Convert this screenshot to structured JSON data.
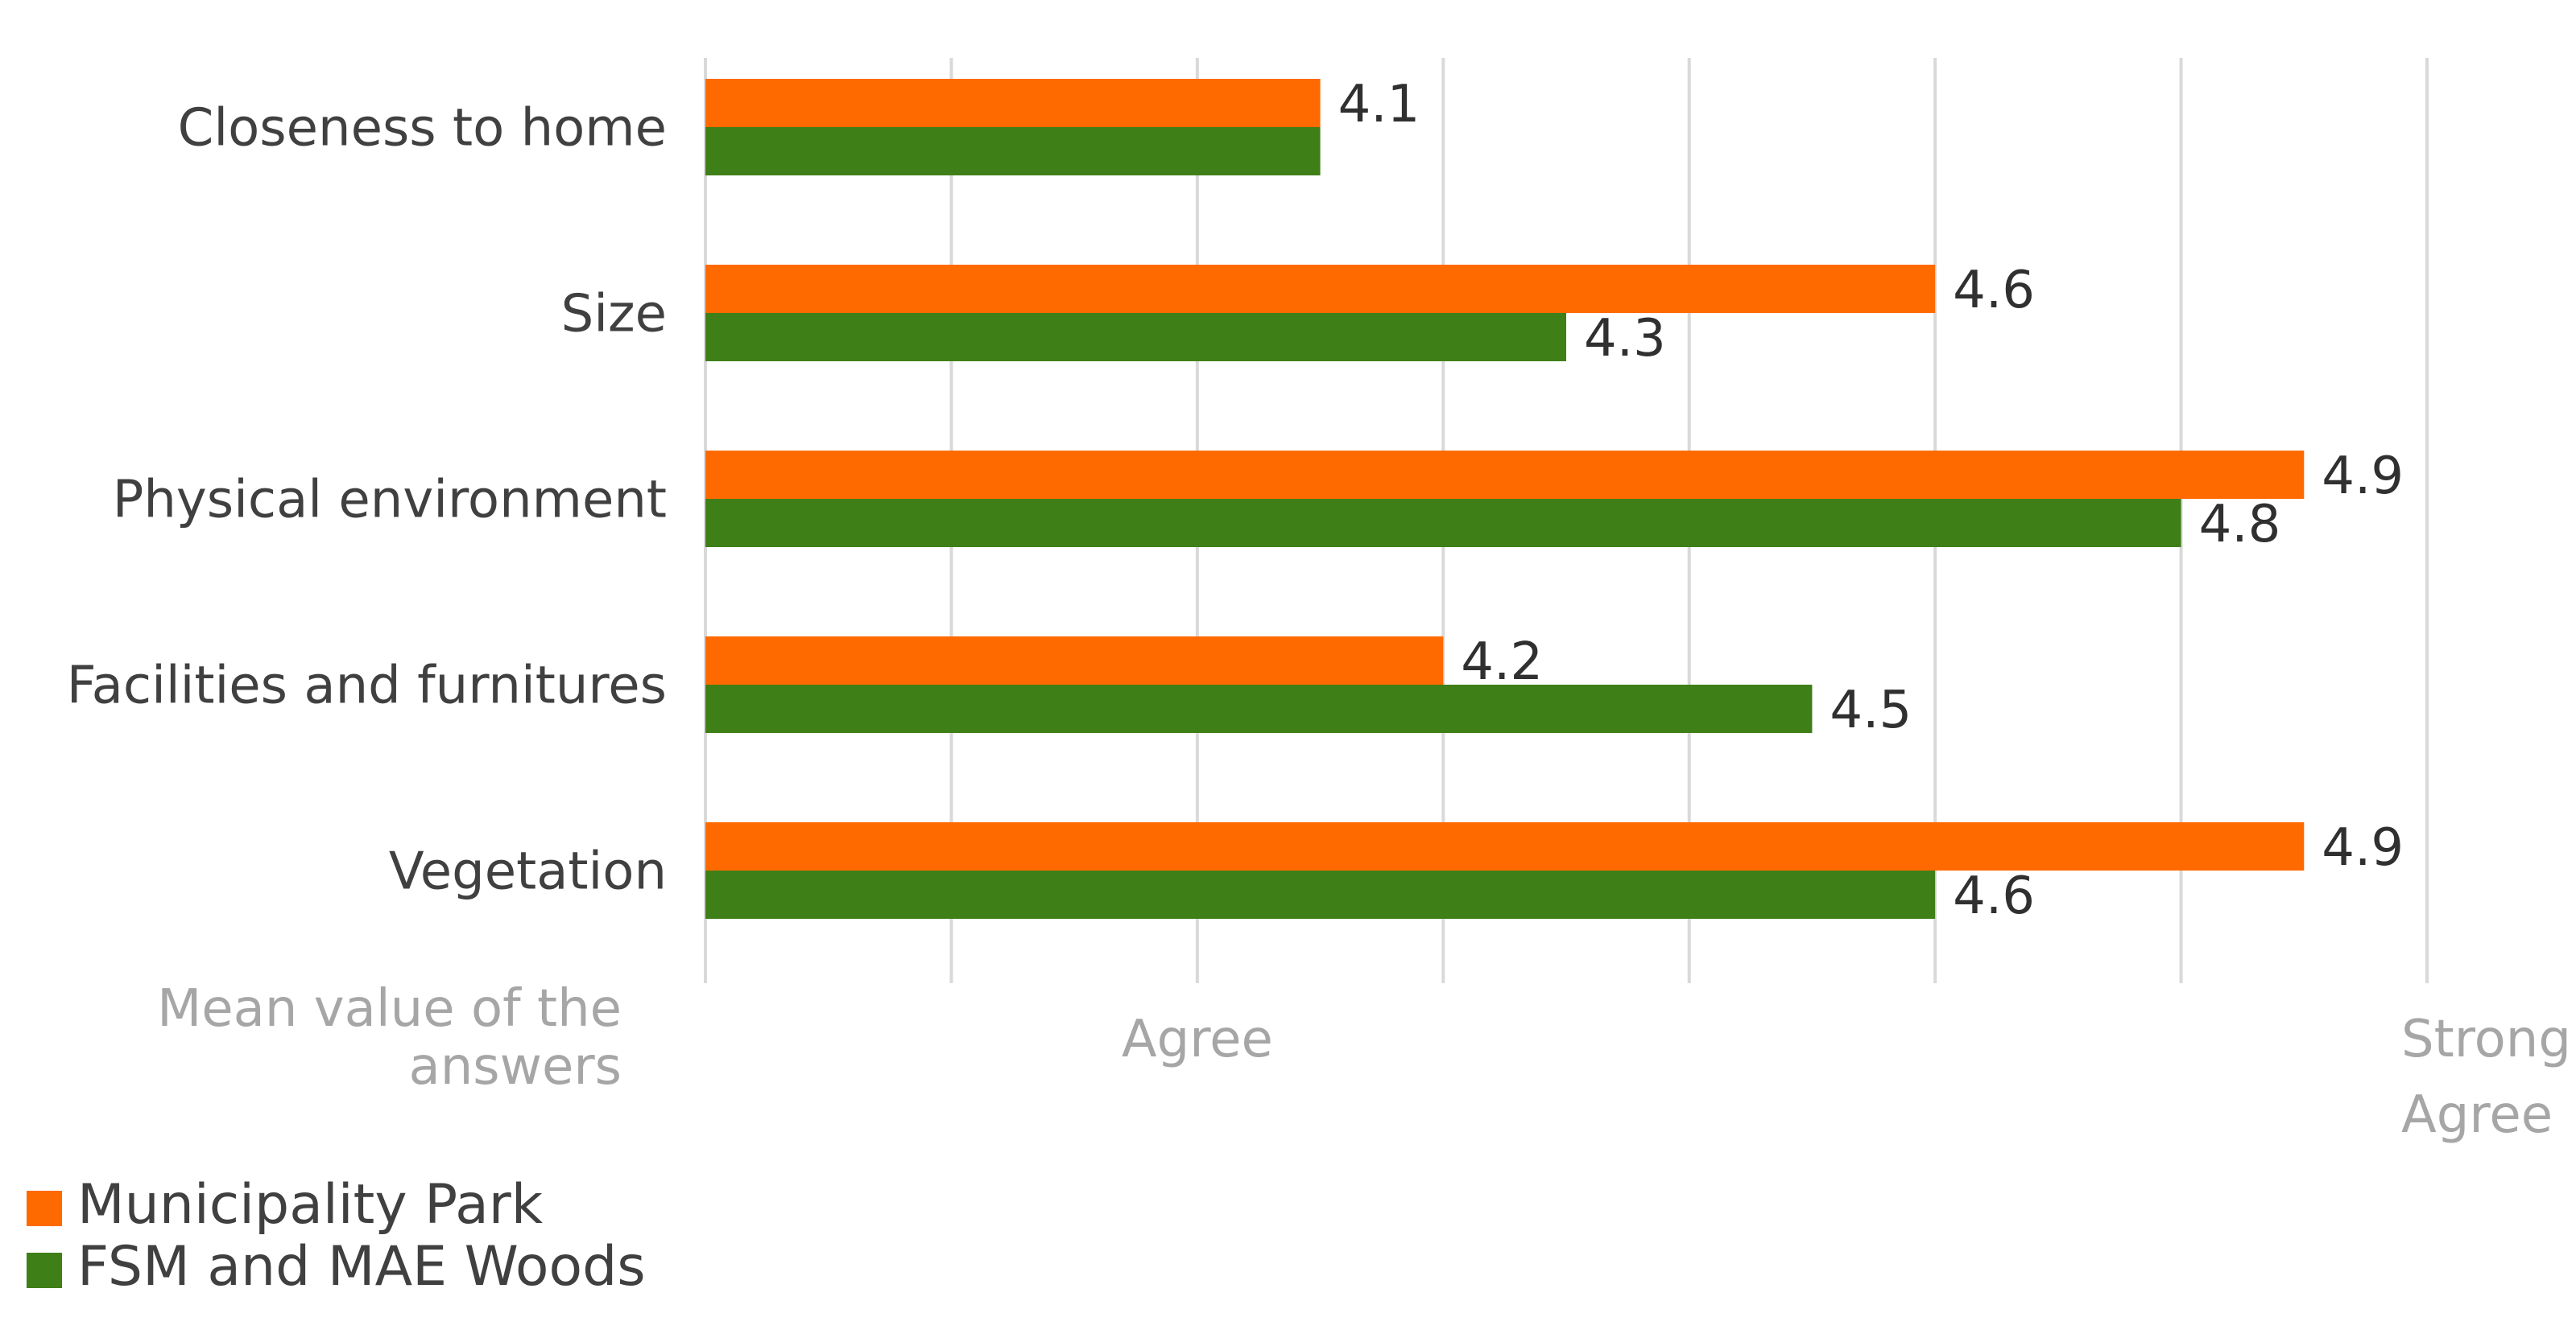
{
  "chart_data": {
    "type": "bar",
    "orientation": "horizontal",
    "categories": [
      "Closeness to home",
      "Size",
      "Physical environment",
      "Facilities and furnitures",
      "Vegetation"
    ],
    "series": [
      {
        "name": "Municipality Park",
        "color": "#ff6a00",
        "values": [
          4.1,
          4.6,
          4.9,
          4.2,
          4.9
        ]
      },
      {
        "name": "FSM and MAE Woods",
        "color": "#3f7f17",
        "values": [
          4.1,
          4.3,
          4.8,
          4.5,
          4.6
        ]
      }
    ],
    "value_labels": [
      [
        "4.1",
        "4.6",
        "4.9",
        "4.2",
        "4.9"
      ],
      [
        "",
        "4.3",
        "4.8",
        "4.5",
        "4.6"
      ]
    ],
    "xlim": [
      3.6,
      5.0
    ],
    "gridlines": [
      3.6,
      3.8,
      4.0,
      4.2,
      4.4,
      4.6,
      4.8,
      5.0
    ],
    "axis_labels": [
      {
        "value": 4.0,
        "lines": [
          "Agree"
        ]
      },
      {
        "value": 5.0,
        "lines": [
          "Strongly",
          "Agree"
        ]
      }
    ],
    "axis_title_lines": [
      "Mean value of the",
      "answers"
    ],
    "grid": true,
    "legend_position": "bottom-left"
  }
}
